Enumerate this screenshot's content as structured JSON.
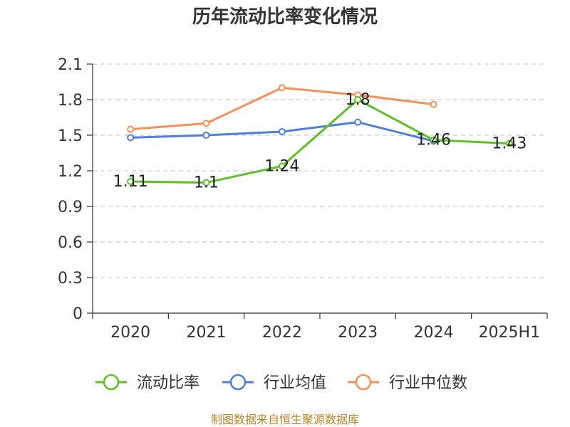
{
  "chart_data": {
    "type": "line",
    "title": "历年流动比率变化情况",
    "categories": [
      "2020",
      "2021",
      "2022",
      "2023",
      "2024",
      "2025H1"
    ],
    "yticks": [
      "0",
      "0.3",
      "0.6",
      "0.9",
      "1.2",
      "1.5",
      "1.8",
      "2.1"
    ],
    "ylim": [
      0,
      2.1
    ],
    "grid": true,
    "legend_position": "bottom",
    "series": [
      {
        "name": "流动比率",
        "color": "#5fbf2a",
        "values": [
          1.11,
          1.1,
          1.24,
          1.8,
          1.46,
          1.43
        ],
        "labels": [
          "1.11",
          "1.1",
          "1.24",
          "1.8",
          "1.46",
          "1.43"
        ]
      },
      {
        "name": "行业均值",
        "color": "#4f7fd9",
        "values": [
          1.48,
          1.5,
          1.53,
          1.61,
          1.45,
          null
        ]
      },
      {
        "name": "行业中位数",
        "color": "#f4905a",
        "values": [
          1.55,
          1.6,
          1.9,
          1.84,
          1.76,
          null
        ]
      }
    ]
  },
  "footer": {
    "source": "制图数据来自恒生聚源数据库"
  }
}
